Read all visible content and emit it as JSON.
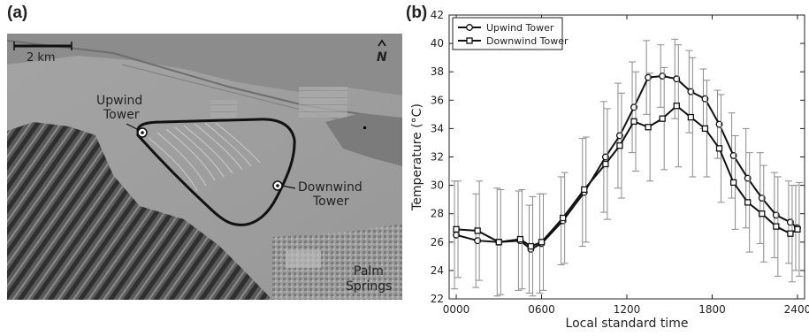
{
  "panels": {
    "a_label": "(a)",
    "b_label": "(b)"
  },
  "map": {
    "scale_label": "2 km",
    "north_label": "N",
    "upwind_label_1": "Upwind",
    "upwind_label_2": "Tower",
    "downwind_label_1": "Downwind",
    "downwind_label_2": "Tower",
    "city_label_1": "Palm",
    "city_label_2": "Springs"
  },
  "chart_data": {
    "type": "line",
    "xlabel": "Local standard time",
    "ylabel": "Temperature  (°C)",
    "xlim": [
      -50,
      2450
    ],
    "ylim": [
      22,
      42
    ],
    "xticks": [
      0,
      600,
      1200,
      1800,
      2400
    ],
    "xtick_labels": [
      "0000",
      "0600",
      "1200",
      "1800",
      "2400"
    ],
    "yticks": [
      22,
      24,
      26,
      28,
      30,
      32,
      34,
      36,
      38,
      40,
      42
    ],
    "legend_position": "top-left",
    "x": [
      30,
      150,
      300,
      450,
      600,
      750,
      900,
      1050,
      1200,
      1350,
      1500,
      1650,
      1800,
      1950,
      2100,
      2250,
      2400
    ],
    "series": [
      {
        "name": "Upwind Tower",
        "marker": "circle",
        "x": [
          0,
          150,
          300,
          450,
          525,
          600,
          750,
          900,
          1050,
          1150,
          1250,
          1350,
          1450,
          1550,
          1650,
          1750,
          1850,
          1950,
          2050,
          2150,
          2250,
          2350,
          2400
        ],
        "values": [
          26.5,
          26.1,
          26.0,
          26.1,
          25.5,
          25.9,
          27.5,
          29.5,
          32.0,
          33.5,
          35.5,
          37.6,
          37.7,
          37.5,
          36.6,
          36.1,
          34.3,
          32.1,
          30.5,
          29.1,
          27.9,
          27.4,
          27.0
        ],
        "errors": [
          3.8,
          3.3,
          3.8,
          3.5,
          3.1,
          3.5,
          3.1,
          3.8,
          3.9,
          3.7,
          3.2,
          2.6,
          2.2,
          2.8,
          2.9,
          2.1,
          2.4,
          3.0,
          3.5,
          3.2,
          3.0,
          2.9,
          3.0
        ]
      },
      {
        "name": "Downwind Tower",
        "marker": "square",
        "x": [
          0,
          150,
          300,
          450,
          525,
          600,
          750,
          900,
          1050,
          1150,
          1250,
          1350,
          1450,
          1550,
          1650,
          1750,
          1850,
          1950,
          2050,
          2150,
          2250,
          2350,
          2400
        ],
        "values": [
          26.9,
          26.8,
          26.0,
          26.2,
          25.7,
          26.0,
          27.7,
          29.7,
          31.5,
          32.8,
          34.5,
          34.1,
          34.7,
          35.6,
          34.8,
          34.0,
          32.6,
          30.2,
          28.8,
          28.0,
          27.1,
          26.6,
          26.9
        ],
        "errors": [
          3.4,
          3.5,
          3.7,
          3.5,
          3.5,
          3.4,
          3.2,
          3.7,
          3.9,
          3.7,
          3.5,
          3.8,
          3.6,
          4.3,
          4.2,
          3.4,
          3.8,
          3.3,
          3.5,
          3.4,
          3.5,
          3.4,
          3.3
        ]
      }
    ]
  }
}
